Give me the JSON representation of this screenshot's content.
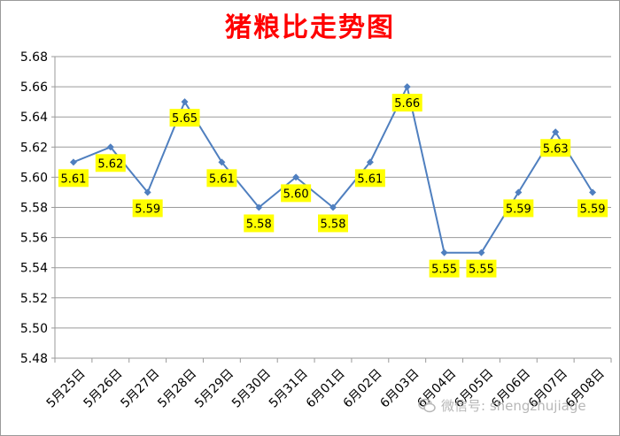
{
  "chart_data": {
    "type": "line",
    "title": "猪粮比走势图",
    "categories": [
      "5月25日",
      "5月26日",
      "5月27日",
      "5月28日",
      "5月29日",
      "5月30日",
      "5月31日",
      "6月01日",
      "6月02日",
      "6月03日",
      "6月04日",
      "6月05日",
      "6月06日",
      "6月07日",
      "6月08日"
    ],
    "values": [
      5.61,
      5.62,
      5.59,
      5.65,
      5.61,
      5.58,
      5.6,
      5.58,
      5.61,
      5.66,
      5.55,
      5.55,
      5.59,
      5.63,
      5.59
    ],
    "data_labels": [
      "5.61",
      "5.62",
      "5.59",
      "5.65",
      "5.61",
      "5.58",
      "5.60",
      "5.58",
      "5.61",
      "5.66",
      "5.55",
      "5.55",
      "5.59",
      "5.63",
      "5.59"
    ],
    "ylim": [
      5.48,
      5.68
    ],
    "yticks": [
      "5.48",
      "5.50",
      "5.52",
      "5.54",
      "5.56",
      "5.58",
      "5.60",
      "5.62",
      "5.64",
      "5.66",
      "5.68"
    ],
    "grid": true,
    "legend": "none",
    "line_color": "#4f7fbf",
    "label_bg_color": "#ffff00",
    "title_color": "#ff0000"
  },
  "watermark": {
    "text": "微信号: shengzhujiage",
    "icon": "wechat-icon"
  }
}
